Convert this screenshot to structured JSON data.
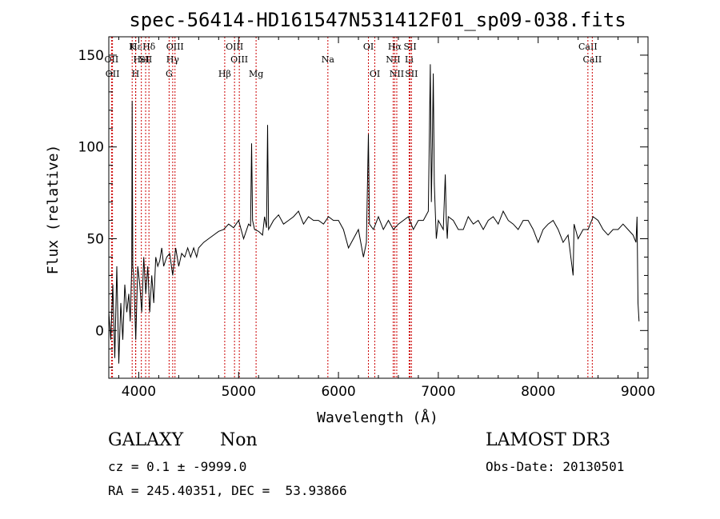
{
  "chart_data": {
    "type": "line",
    "title": "spec-56414-HD161547N531412F01_sp09-038.fits",
    "xlabel": "Wavelength (Å)",
    "ylabel": "Flux (relative)",
    "xlim": [
      3700,
      9100
    ],
    "ylim": [
      -26,
      160
    ],
    "xticks": [
      4000,
      5000,
      6000,
      7000,
      8000,
      9000
    ],
    "yticks": [
      0,
      50,
      100,
      150
    ],
    "grid": false,
    "line_color": "#000000",
    "marker_color": "#cc0000",
    "series": [
      {
        "x": [
          3700,
          3720,
          3740,
          3760,
          3780,
          3800,
          3820,
          3840,
          3860,
          3880,
          3900,
          3915,
          3930,
          3934,
          3940,
          3950,
          3970,
          3990,
          4010,
          4030,
          4050,
          4070,
          4090,
          4110,
          4130,
          4150,
          4170,
          4190,
          4210,
          4230,
          4250,
          4280,
          4310,
          4340,
          4370,
          4400,
          4430,
          4460,
          4490,
          4520,
          4550,
          4580,
          4600,
          4650,
          4700,
          4750,
          4800,
          4850,
          4900,
          4950,
          5000,
          5050,
          5100,
          5120,
          5130,
          5140,
          5160,
          5200,
          5240,
          5260,
          5280,
          5290,
          5300,
          5350,
          5400,
          5450,
          5500,
          5550,
          5600,
          5650,
          5700,
          5750,
          5800,
          5850,
          5900,
          5950,
          6000,
          6050,
          6100,
          6150,
          6200,
          6250,
          6280,
          6300,
          6310,
          6350,
          6400,
          6450,
          6500,
          6550,
          6600,
          6650,
          6700,
          6750,
          6800,
          6850,
          6900,
          6920,
          6930,
          6940,
          6950,
          6960,
          6970,
          6980,
          7000,
          7050,
          7070,
          7080,
          7090,
          7100,
          7150,
          7200,
          7250,
          7300,
          7350,
          7400,
          7450,
          7500,
          7550,
          7600,
          7650,
          7700,
          7750,
          7800,
          7850,
          7900,
          7950,
          8000,
          8050,
          8100,
          8150,
          8200,
          8250,
          8300,
          8350,
          8360,
          8400,
          8450,
          8500,
          8550,
          8600,
          8650,
          8700,
          8750,
          8800,
          8850,
          8900,
          8950,
          8980,
          8990,
          9000,
          9010
        ],
        "y": [
          10,
          -5,
          25,
          -15,
          35,
          -18,
          15,
          -5,
          25,
          10,
          20,
          5,
          35,
          125,
          35,
          30,
          -5,
          35,
          25,
          10,
          40,
          20,
          35,
          10,
          30,
          15,
          40,
          35,
          38,
          45,
          35,
          40,
          42,
          30,
          45,
          35,
          42,
          40,
          45,
          40,
          45,
          40,
          45,
          48,
          50,
          52,
          54,
          55,
          58,
          56,
          60,
          50,
          58,
          57,
          102,
          60,
          55,
          54,
          52,
          62,
          56,
          112,
          55,
          60,
          63,
          58,
          60,
          62,
          65,
          58,
          62,
          60,
          60,
          58,
          62,
          60,
          60,
          55,
          45,
          50,
          55,
          40,
          48,
          107,
          58,
          55,
          62,
          55,
          60,
          55,
          58,
          60,
          62,
          55,
          60,
          60,
          65,
          145,
          70,
          100,
          140,
          80,
          65,
          50,
          60,
          55,
          85,
          60,
          50,
          62,
          60,
          55,
          55,
          62,
          58,
          60,
          55,
          60,
          62,
          58,
          65,
          60,
          58,
          55,
          60,
          60,
          55,
          48,
          55,
          58,
          60,
          55,
          48,
          52,
          30,
          58,
          50,
          55,
          55,
          62,
          60,
          55,
          52,
          55,
          55,
          58,
          55,
          52,
          48,
          62,
          15,
          5
        ]
      }
    ],
    "lines": [
      {
        "x": 3727,
        "label": "OII",
        "row": 2
      },
      {
        "x": 3737,
        "label": "OII",
        "row": 3
      },
      {
        "x": 3934,
        "label": "K",
        "row": 1
      },
      {
        "x": 3968,
        "label": "H",
        "row": 3
      },
      {
        "x": 3970,
        "label": "Hε",
        "row": 1
      },
      {
        "x": 4026,
        "label": "HeI",
        "row": 2
      },
      {
        "x": 4102,
        "label": "Hδ",
        "row": 1
      },
      {
        "x": 4069,
        "label": "SII",
        "row": 2
      },
      {
        "x": 4340,
        "label": "Hγ",
        "row": 2
      },
      {
        "x": 4304,
        "label": "G",
        "row": 3
      },
      {
        "x": 4363,
        "label": "OIII",
        "row": 1
      },
      {
        "x": 4861,
        "label": "Hβ",
        "row": 3
      },
      {
        "x": 4959,
        "label": "OIII",
        "row": 1
      },
      {
        "x": 5007,
        "label": "OIII",
        "row": 2
      },
      {
        "x": 5175,
        "label": "Mg",
        "row": 3
      },
      {
        "x": 5894,
        "label": "Na",
        "row": 2
      },
      {
        "x": 6300,
        "label": "OI",
        "row": 1
      },
      {
        "x": 6364,
        "label": "OI",
        "row": 3
      },
      {
        "x": 6548,
        "label": "NII",
        "row": 2
      },
      {
        "x": 6563,
        "label": "Hα",
        "row": 1
      },
      {
        "x": 6584,
        "label": "NII",
        "row": 3
      },
      {
        "x": 6717,
        "label": "SII",
        "row": 1
      },
      {
        "x": 6731,
        "label": "SII",
        "row": 3
      },
      {
        "x": 6708,
        "label": "Li",
        "row": 2
      },
      {
        "x": 8498,
        "label": "CaII",
        "row": 1
      },
      {
        "x": 8542,
        "label": "CaII",
        "row": 2
      }
    ]
  },
  "info": {
    "object_class": "GALAXY",
    "subclass": "Non",
    "survey": "LAMOST DR3",
    "cz": "cz = 0.1 ± -9999.0",
    "obs_date": "Obs-Date: 20130501",
    "coords": "RA = 245.40351, DEC =  53.93866"
  }
}
